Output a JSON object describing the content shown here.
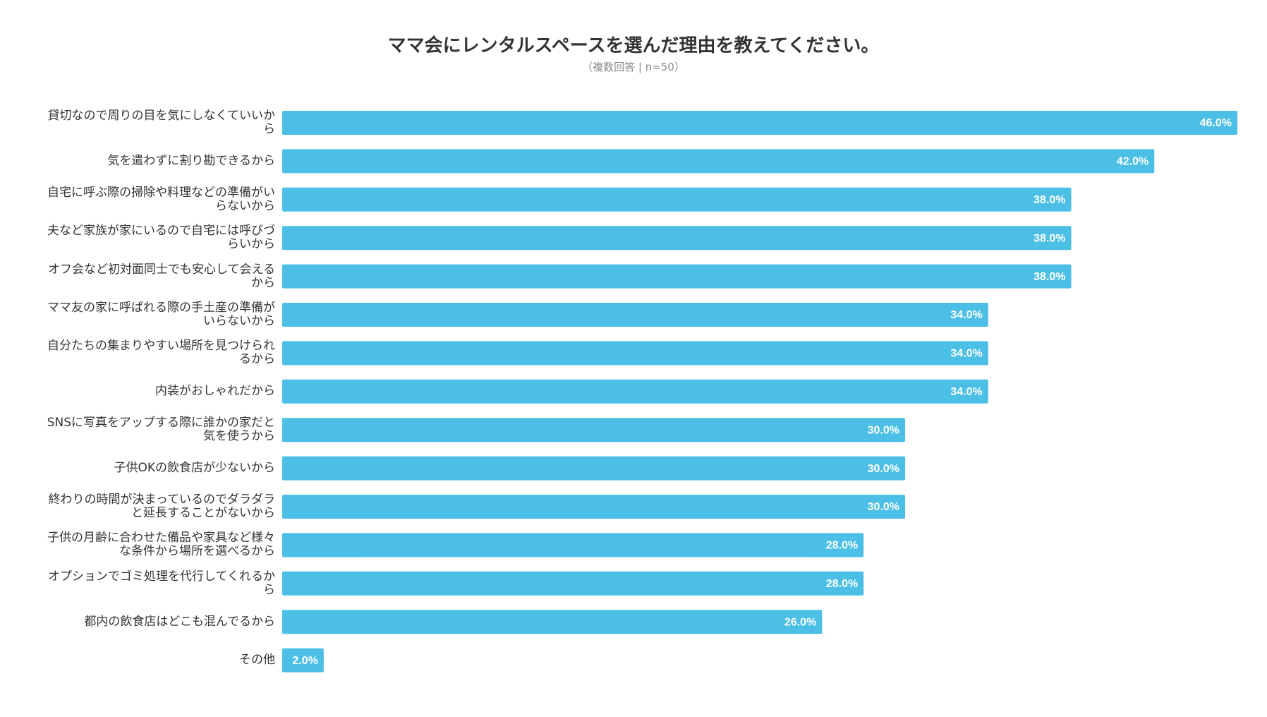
{
  "chart_data": {
    "type": "bar",
    "orientation": "horizontal",
    "title": "ママ会にレンタルスペースを選んだ理由を教えてください。",
    "subtitle": "（複数回答 | n=50）",
    "categories": [
      "貸切なので周りの目を気にしなくていいから",
      "気を遣わずに割り勘できるから",
      "自宅に呼ぶ際の掃除や料理などの準備がいらないから",
      "夫など家族が家にいるので自宅には呼びづらいから",
      "オフ会など初対面同士でも安心して会えるから",
      "ママ友の家に呼ばれる際の手土産の準備がいらないから",
      "自分たちの集まりやすい場所を見つけられるから",
      "内装がおしゃれだから",
      "SNSに写真をアップする際に誰かの家だと気を使うから",
      "子供OKの飲食店が少ないから",
      "終わりの時間が決まっているのでダラダラと延長することがないから",
      "子供の月齢に合わせた備品や家具など様々な条件から場所を選べるから",
      "オプションでゴミ処理を代行してくれるから",
      "都内の飲食店はどこも混んでるから",
      "その他"
    ],
    "values": [
      46,
      42,
      38,
      38,
      38,
      34,
      34,
      34,
      30,
      30,
      30,
      28,
      28,
      26,
      2
    ],
    "value_labels": [
      "46.0%",
      "42.0%",
      "38.0%",
      "38.0%",
      "38.0%",
      "34.0%",
      "34.0%",
      "34.0%",
      "30.0%",
      "30.0%",
      "30.0%",
      "28.0%",
      "28.0%",
      "26.0%",
      "2.0%"
    ],
    "color": "#4bbfe6"
  }
}
